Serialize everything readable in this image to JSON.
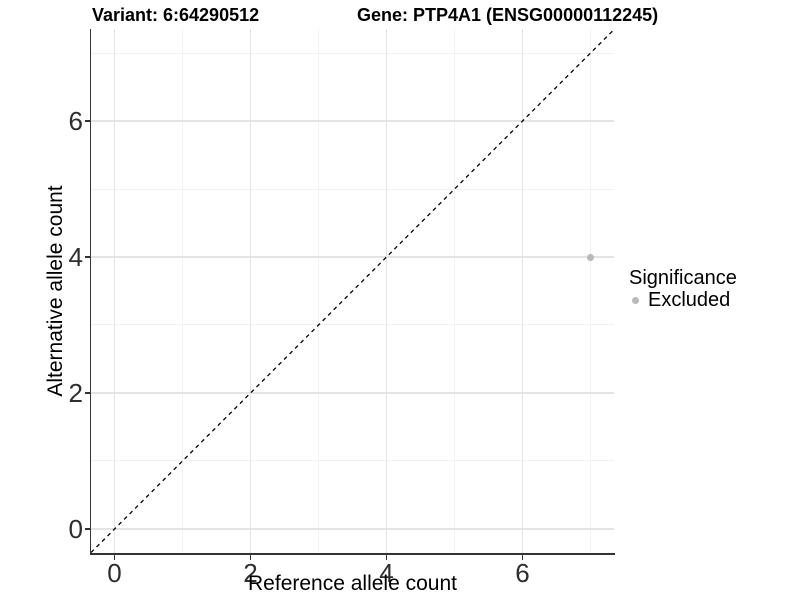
{
  "chart_data": {
    "type": "scatter",
    "title_left": "Variant: 6:64290512",
    "title_right": "Gene: PTP4A1 (ENSG00000112245)",
    "xlabel": "Reference allele count",
    "ylabel": "Alternative allele count",
    "xlim": [
      -0.346,
      7.345
    ],
    "ylim": [
      -0.353,
      7.353
    ],
    "x_major_ticks": [
      0,
      2,
      4,
      6
    ],
    "y_major_ticks": [
      0,
      2,
      4,
      6
    ],
    "x_minor_gridlines": [
      1,
      3,
      5,
      7
    ],
    "y_minor_gridlines": [
      1,
      3,
      5,
      7
    ],
    "points": [
      {
        "x": 7,
        "y": 4,
        "series": "Excluded"
      }
    ],
    "identity_line": {
      "type": "abline",
      "slope": 1,
      "intercept": 0,
      "style": "dashed"
    },
    "legend": {
      "title": "Significance",
      "position": "right",
      "items": [
        {
          "label": "Excluded",
          "color": "#b9b9b9"
        }
      ]
    },
    "colors": {
      "background": "#ffffff",
      "axis_line": "#333333",
      "grid_major": "#e4e4e4",
      "grid_minor": "#f1f1f1",
      "abline": "#000000",
      "title_text": "#000000",
      "tick_text": "#2e2e2e"
    }
  }
}
